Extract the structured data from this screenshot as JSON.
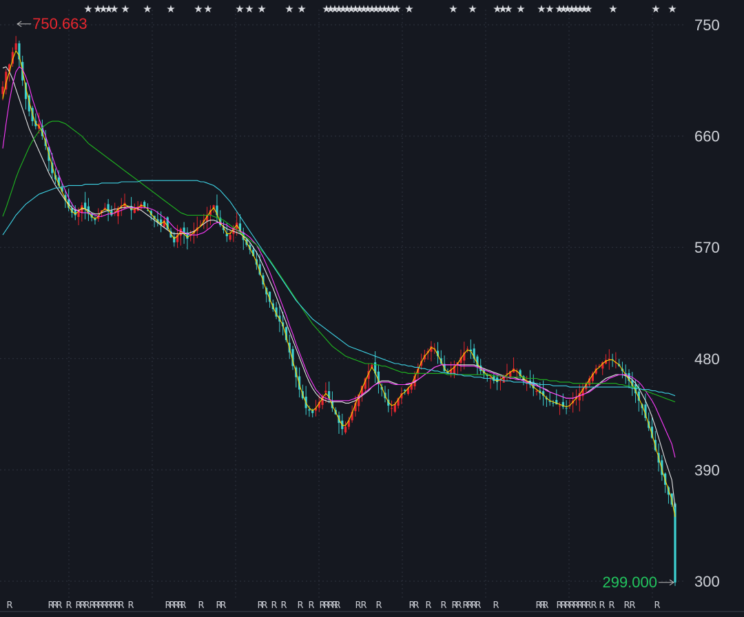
{
  "chart_data": {
    "type": "candlestick",
    "y_ticks": [
      "750",
      "660",
      "570",
      "480",
      "390",
      "300"
    ],
    "ylim": [
      300,
      750
    ],
    "high_marker": {
      "value": 750.663,
      "label": "750.663",
      "color": "#e8262e"
    },
    "low_marker": {
      "value": 299.0,
      "label": "299.000",
      "color": "#22c55e"
    },
    "colors": {
      "up": "#e8262e",
      "down": "#3dd1d1",
      "background": "#151820",
      "grid": "#2f3440"
    },
    "close_values": [
      700,
      712,
      718,
      728,
      735,
      722,
      705,
      690,
      680,
      672,
      668,
      670,
      660,
      652,
      640,
      630,
      625,
      620,
      615,
      608,
      602,
      598,
      596,
      600,
      604,
      601,
      597,
      594,
      592,
      595,
      600,
      602,
      599,
      596,
      598,
      602,
      604,
      606,
      603,
      600,
      601,
      603,
      605,
      603,
      600,
      596,
      593,
      590,
      588,
      592,
      585,
      578,
      574,
      580,
      585,
      581,
      577,
      580,
      583,
      586,
      588,
      592,
      596,
      600,
      604,
      596,
      588,
      584,
      579,
      580,
      586,
      590,
      583,
      576,
      572,
      568,
      563,
      556,
      548,
      540,
      532,
      526,
      520,
      514,
      510,
      506,
      495,
      485,
      474,
      465,
      455,
      448,
      440,
      438,
      436,
      440,
      445,
      450,
      454,
      448,
      440,
      435,
      428,
      423,
      425,
      430,
      437,
      444,
      451,
      458,
      464,
      470,
      475,
      468,
      460,
      455,
      448,
      442,
      440,
      443,
      448,
      452,
      454,
      456,
      460,
      466,
      472,
      478,
      483,
      486,
      490,
      488,
      482,
      476,
      470,
      468,
      471,
      474,
      477,
      481,
      485,
      488,
      486,
      480,
      474,
      470,
      468,
      466,
      465,
      462,
      461,
      463,
      466,
      468,
      470,
      472,
      470,
      466,
      463,
      461,
      459,
      456,
      454,
      452,
      450,
      447,
      445,
      444,
      443,
      442,
      441,
      440,
      442,
      446,
      449,
      452,
      456,
      460,
      464,
      468,
      472,
      474,
      477,
      479,
      480,
      479,
      477,
      474,
      470,
      466,
      462,
      458,
      452,
      446,
      440,
      432,
      424,
      416,
      406,
      396,
      386,
      378,
      370,
      362,
      299
    ],
    "ma_lines": [
      {
        "color": "#e8e8e8",
        "values": [
          715,
          716,
          712,
          706,
          698,
          690,
          682,
          674,
          666,
          660,
          654,
          648,
          642,
          636,
          630,
          625,
          620,
          616,
          612,
          608,
          605,
          602,
          600,
          600,
          601,
          601,
          600,
          598,
          597,
          597,
          598,
          599,
          600,
          600,
          601,
          601,
          602,
          602,
          603,
          603,
          602,
          601,
          600,
          598,
          596,
          594,
          592,
          590,
          588,
          586,
          584,
          582,
          581,
          581,
          581,
          581,
          581,
          582,
          583,
          585,
          587,
          589,
          591,
          592,
          592,
          591,
          589,
          587,
          585,
          584,
          583,
          582,
          581,
          579,
          577,
          574,
          570,
          566,
          561,
          555,
          549,
          543,
          537,
          530,
          523,
          516,
          509,
          502,
          495,
          488,
          481,
          474,
          467,
          461,
          456,
          452,
          449,
          447,
          446,
          445,
          445,
          445,
          445,
          445,
          444,
          444,
          445,
          446,
          448,
          450,
          452,
          454,
          457,
          459,
          461,
          462,
          462,
          462,
          461,
          460,
          459,
          459,
          459,
          459,
          460,
          461,
          463,
          465,
          467,
          469,
          471,
          473,
          474,
          475,
          475,
          475,
          475,
          475,
          475,
          475,
          475,
          475,
          475,
          475,
          474,
          473,
          472,
          471,
          470,
          469,
          468,
          467,
          466,
          465,
          465,
          465,
          464,
          463,
          463,
          462,
          461,
          460,
          459,
          457,
          456,
          455,
          453,
          452,
          451,
          450,
          449,
          448,
          448,
          448,
          449,
          450,
          451,
          452,
          454,
          456,
          458,
          460,
          462,
          464,
          465,
          466,
          467,
          467,
          467,
          466,
          465,
          463,
          460,
          456,
          451,
          446,
          440,
          433,
          425,
          416,
          407,
          398,
          390,
          382,
          360
        ]
      },
      {
        "color": "#ffd400",
        "values": [
          690,
          703,
          712,
          722,
          729,
          725,
          713,
          699,
          688,
          678,
          670,
          668,
          663,
          655,
          645,
          636,
          627,
          621,
          615,
          609,
          603,
          599,
          597,
          599,
          602,
          601,
          598,
          595,
          593,
          595,
          599,
          601,
          600,
          597,
          598,
          601,
          603,
          605,
          603,
          601,
          601,
          602,
          604,
          603,
          601,
          597,
          594,
          591,
          589,
          591,
          587,
          581,
          577,
          579,
          583,
          581,
          578,
          580,
          582,
          585,
          587,
          591,
          595,
          599,
          602,
          597,
          590,
          586,
          581,
          581,
          585,
          588,
          584,
          578,
          574,
          569,
          564,
          558,
          550,
          543,
          535,
          528,
          522,
          516,
          512,
          507,
          498,
          488,
          478,
          469,
          459,
          451,
          444,
          440,
          438,
          440,
          444,
          448,
          452,
          449,
          442,
          437,
          431,
          426,
          426,
          430,
          436,
          443,
          450,
          456,
          462,
          468,
          473,
          469,
          462,
          457,
          450,
          445,
          442,
          443,
          447,
          451,
          453,
          456,
          459,
          465,
          471,
          477,
          482,
          485,
          489,
          488,
          483,
          478,
          472,
          469,
          471,
          473,
          476,
          480,
          484,
          487,
          486,
          481,
          476,
          472,
          469,
          467,
          466,
          463,
          462,
          463,
          465,
          467,
          469,
          471,
          470,
          467,
          464,
          462,
          460,
          457,
          455,
          453,
          451,
          448,
          446,
          445,
          444,
          443,
          442,
          441,
          442,
          445,
          448,
          451,
          455,
          459,
          463,
          467,
          471,
          473,
          476,
          478,
          479,
          479,
          477,
          475,
          471,
          467,
          463,
          459,
          454,
          448,
          442,
          435,
          427,
          419,
          409,
          400,
          390,
          382,
          374,
          366,
          352
        ]
      },
      {
        "color": "#ff3bff",
        "values": [
          650,
          670,
          688,
          702,
          712,
          716,
          714,
          708,
          700,
          690,
          682,
          674,
          667,
          660,
          652,
          644,
          636,
          629,
          622,
          616,
          610,
          605,
          601,
          599,
          598,
          598,
          598,
          597,
          596,
          595,
          595,
          596,
          597,
          597,
          598,
          599,
          600,
          601,
          602,
          602,
          602,
          602,
          602,
          602,
          602,
          601,
          600,
          598,
          596,
          594,
          592,
          589,
          586,
          584,
          583,
          582,
          581,
          580,
          580,
          580,
          581,
          582,
          584,
          586,
          589,
          590,
          590,
          589,
          588,
          586,
          585,
          584,
          583,
          582,
          580,
          578,
          575,
          572,
          567,
          562,
          556,
          550,
          543,
          536,
          529,
          522,
          515,
          507,
          500,
          492,
          485,
          478,
          471,
          465,
          460,
          455,
          452,
          449,
          448,
          447,
          446,
          446,
          446,
          446,
          446,
          446,
          447,
          448,
          449,
          451,
          453,
          455,
          457,
          459,
          460,
          461,
          461,
          461,
          460,
          459,
          459,
          459,
          459,
          460,
          460,
          462,
          463,
          465,
          467,
          469,
          471,
          473,
          474,
          475,
          475,
          475,
          475,
          475,
          475,
          474,
          474,
          474,
          474,
          474,
          473,
          472,
          471,
          470,
          469,
          468,
          467,
          466,
          465,
          465,
          464,
          464,
          463,
          463,
          462,
          461,
          460,
          459,
          458,
          457,
          456,
          454,
          453,
          452,
          451,
          450,
          449,
          448,
          448,
          448,
          449,
          450,
          451,
          452,
          453,
          455,
          457,
          459,
          461,
          462,
          464,
          465,
          466,
          467,
          467,
          467,
          466,
          465,
          463,
          461,
          458,
          454,
          450,
          446,
          441,
          435,
          429,
          423,
          417,
          411,
          400
        ]
      },
      {
        "color": "#1fb81f",
        "values": [
          595,
          602,
          610,
          618,
          626,
          633,
          639,
          645,
          651,
          656,
          660,
          664,
          667,
          669,
          671,
          672,
          672,
          672,
          671,
          670,
          668,
          666,
          664,
          662,
          660,
          657,
          654,
          652,
          650,
          648,
          646,
          644,
          642,
          640,
          638,
          636,
          634,
          632,
          630,
          628,
          626,
          624,
          622,
          620,
          618,
          616,
          614,
          612,
          610,
          608,
          606,
          604,
          602,
          600,
          598,
          597,
          596,
          596,
          596,
          596,
          596,
          596,
          596,
          596,
          595,
          594,
          593,
          592,
          590,
          588,
          586,
          584,
          582,
          580,
          578,
          576,
          574,
          572,
          569,
          566,
          563,
          560,
          556,
          552,
          548,
          544,
          540,
          536,
          532,
          528,
          524,
          520,
          516,
          512,
          508,
          505,
          502,
          499,
          496,
          493,
          490,
          488,
          486,
          484,
          482,
          481,
          480,
          479,
          478,
          477,
          476,
          476,
          476,
          475,
          475,
          474,
          474,
          473,
          472,
          471,
          470,
          469,
          469,
          468,
          468,
          468,
          468,
          468,
          468,
          468,
          468,
          468,
          468,
          468,
          468,
          467,
          467,
          467,
          467,
          467,
          467,
          467,
          467,
          467,
          467,
          467,
          467,
          467,
          467,
          466,
          466,
          466,
          466,
          465,
          465,
          465,
          465,
          465,
          465,
          464,
          464,
          464,
          464,
          463,
          463,
          463,
          462,
          462,
          462,
          461,
          461,
          461,
          461,
          460,
          460,
          460,
          460,
          460,
          460,
          460,
          460,
          460,
          460,
          460,
          460,
          460,
          460,
          459,
          459,
          458,
          458,
          457,
          457,
          456,
          455,
          454,
          453,
          452,
          451,
          450,
          449,
          448,
          447,
          446,
          445
        ]
      },
      {
        "color": "#3ed4e6",
        "values": [
          580,
          584,
          588,
          592,
          596,
          599,
          602,
          605,
          607,
          609,
          611,
          613,
          614,
          615,
          616,
          617,
          618,
          618,
          619,
          619,
          620,
          620,
          620,
          620,
          620,
          621,
          621,
          621,
          621,
          621,
          622,
          622,
          622,
          622,
          622,
          622,
          623,
          623,
          623,
          623,
          623,
          623,
          624,
          624,
          624,
          624,
          624,
          624,
          624,
          624,
          624,
          624,
          624,
          624,
          624,
          624,
          624,
          624,
          624,
          624,
          623,
          623,
          622,
          621,
          620,
          618,
          616,
          613,
          610,
          607,
          603,
          599,
          595,
          591,
          587,
          583,
          579,
          575,
          571,
          567,
          563,
          559,
          555,
          551,
          547,
          543,
          539,
          535,
          531,
          527,
          524,
          521,
          518,
          515,
          512,
          510,
          508,
          506,
          504,
          502,
          500,
          498,
          496,
          494,
          492,
          490,
          489,
          488,
          487,
          486,
          485,
          484,
          483,
          482,
          481,
          480,
          479,
          478,
          477,
          476,
          476,
          475,
          475,
          474,
          474,
          473,
          473,
          472,
          472,
          471,
          471,
          470,
          470,
          469,
          469,
          468,
          468,
          468,
          467,
          467,
          466,
          466,
          466,
          465,
          465,
          465,
          464,
          464,
          464,
          463,
          463,
          463,
          462,
          462,
          462,
          461,
          461,
          461,
          461,
          460,
          460,
          460,
          460,
          459,
          459,
          459,
          459,
          458,
          458,
          458,
          458,
          458,
          457,
          457,
          457,
          457,
          457,
          457,
          457,
          457,
          457,
          457,
          457,
          457,
          457,
          457,
          457,
          457,
          457,
          457,
          457,
          456,
          456,
          456,
          455,
          455,
          455,
          454,
          454,
          453,
          453,
          452,
          452,
          451,
          450
        ]
      }
    ]
  }
}
